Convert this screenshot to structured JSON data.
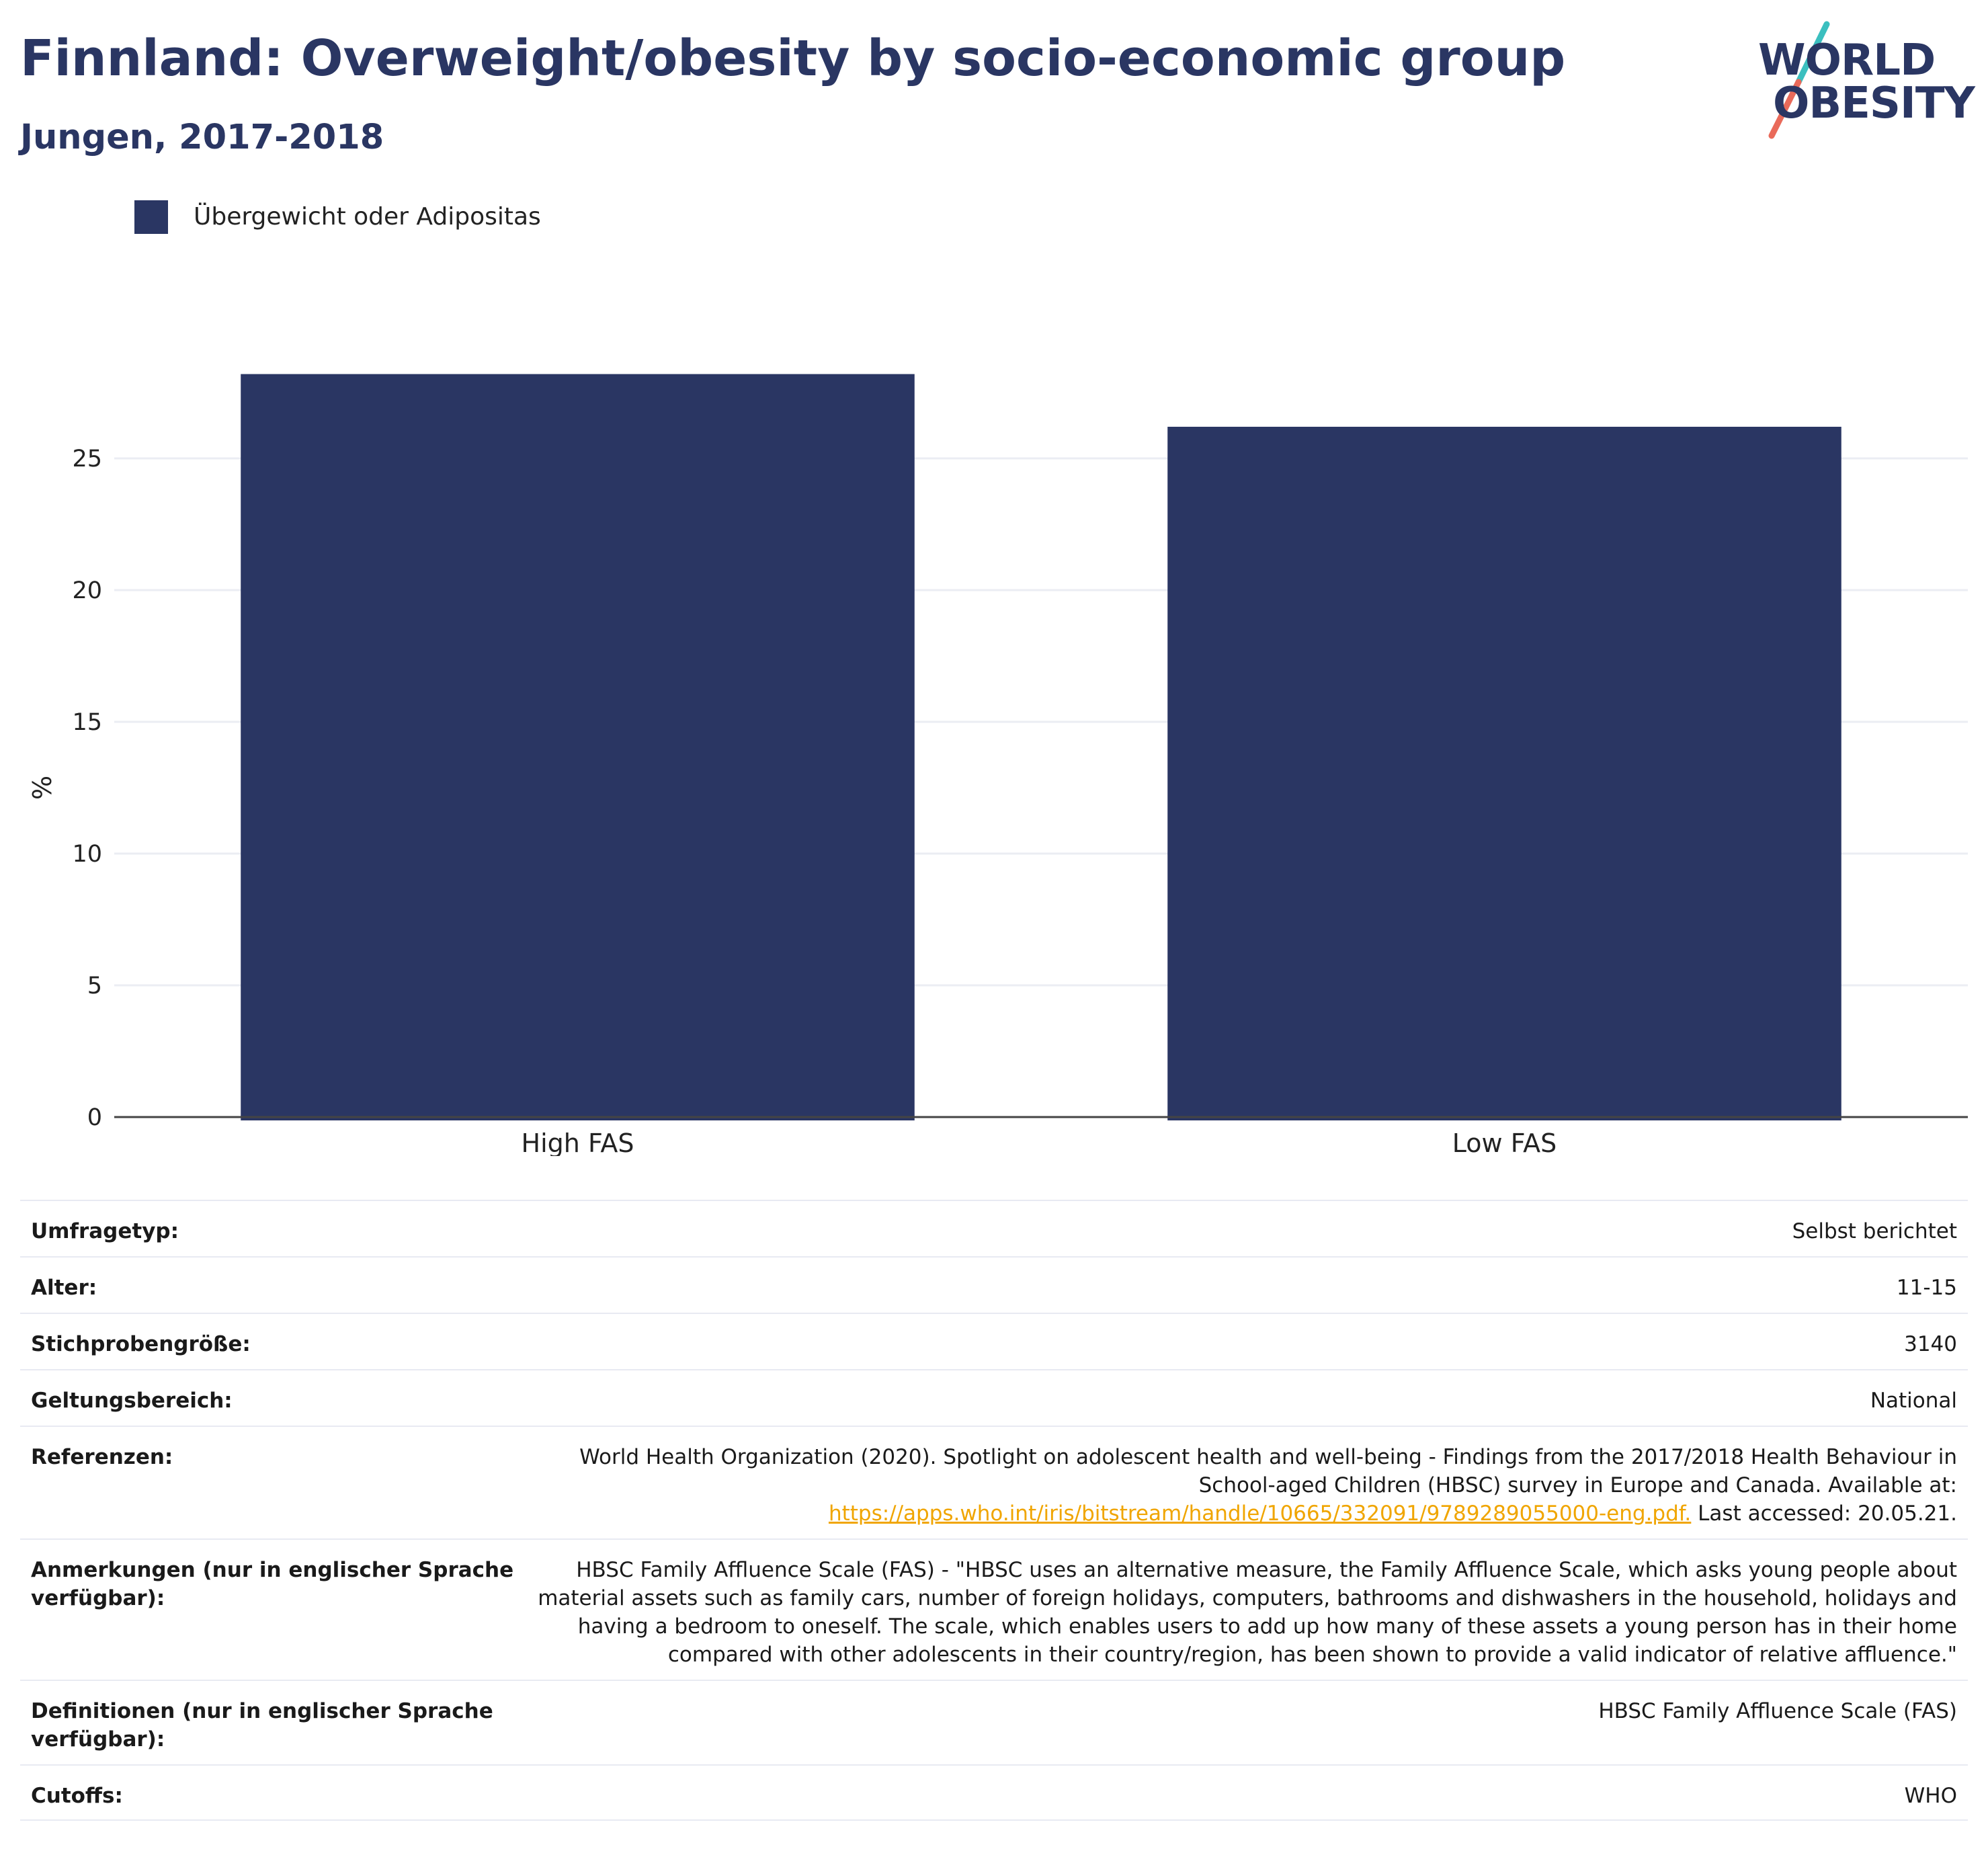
{
  "header": {
    "title": "Finnland: Overweight/obesity by socio-economic group",
    "subtitle": "Jungen, 2017-2018"
  },
  "logo": {
    "line1": "WORLD",
    "line2": "OBESITY",
    "colors": {
      "text": "#2a3663",
      "slash_top": "#3bbfbf",
      "slash_bottom": "#e96a5a"
    }
  },
  "legend": {
    "label": "Übergewicht oder Adipositas",
    "color": "#2a3663"
  },
  "chart_data": {
    "type": "bar",
    "categories": [
      "High FAS",
      "Low FAS"
    ],
    "series": [
      {
        "name": "Übergewicht oder Adipositas",
        "values": [
          28.2,
          26.2
        ],
        "color": "#2a3663"
      }
    ],
    "title": "Finnland: Overweight/obesity by socio-economic group",
    "subtitle": "Jungen, 2017-2018",
    "xlabel": "",
    "ylabel": "%",
    "ylim": [
      0,
      29
    ],
    "yticks": [
      0,
      5,
      10,
      15,
      20,
      25
    ],
    "grid": true,
    "legend_position": "top-left"
  },
  "info": [
    {
      "label": "Umfragetyp:",
      "value": "Selbst berichtet"
    },
    {
      "label": "Alter:",
      "value": "11-15"
    },
    {
      "label": "Stichprobengröße:",
      "value": "3140"
    },
    {
      "label": "Geltungsbereich:",
      "value": "National"
    },
    {
      "label": "Referenzen:",
      "value_pre": "World Health Organization (2020). Spotlight on adolescent health and well-being - Findings from the 2017/2018 Health Behaviour in School-aged Children (HBSC) survey in Europe and Canada. Available at:",
      "link": "https://apps.who.int/iris/bitstream/handle/10665/332091/9789289055000-eng.pdf.",
      "value_post": "Last accessed: 20.05.21."
    },
    {
      "label": "Anmerkungen (nur in englischer Sprache verfügbar):",
      "value": "HBSC Family Affluence Scale (FAS) - \"HBSC uses an alternative measure, the Family Affluence Scale, which asks young people about material assets such as family cars, number of foreign holidays, computers, bathrooms and dishwashers in the household, holidays and having a bedroom to oneself. The scale, which enables users to add up how many of these assets a young person has in their home compared with other adolescents in their country/region, has been shown to provide a valid indicator of relative affluence.\""
    },
    {
      "label": "Definitionen (nur in englischer Sprache verfügbar):",
      "value": "HBSC Family Affluence Scale (FAS)"
    },
    {
      "label": "Cutoffs:",
      "value": "WHO"
    }
  ]
}
